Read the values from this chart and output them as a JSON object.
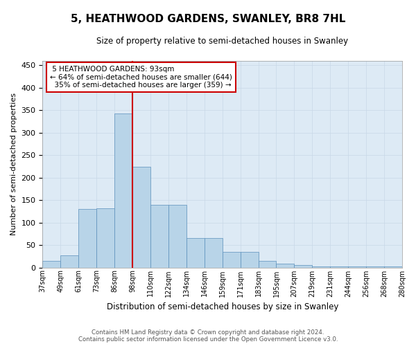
{
  "title": "5, HEATHWOOD GARDENS, SWANLEY, BR8 7HL",
  "subtitle": "Size of property relative to semi-detached houses in Swanley",
  "xlabel": "Distribution of semi-detached houses by size in Swanley",
  "ylabel": "Number of semi-detached properties",
  "bins": [
    "37sqm",
    "49sqm",
    "61sqm",
    "73sqm",
    "86sqm",
    "98sqm",
    "110sqm",
    "122sqm",
    "134sqm",
    "146sqm",
    "159sqm",
    "171sqm",
    "183sqm",
    "195sqm",
    "207sqm",
    "219sqm",
    "231sqm",
    "244sqm",
    "256sqm",
    "268sqm",
    "280sqm"
  ],
  "bar_heights": [
    15,
    27,
    130,
    132,
    342,
    224,
    139,
    139,
    65,
    65,
    34,
    34,
    14,
    8,
    5,
    3,
    3,
    3,
    3,
    3
  ],
  "property_bin_index": 5,
  "property_label": "5 HEATHWOOD GARDENS: 93sqm",
  "pct_smaller": 64,
  "pct_larger": 35,
  "count_smaller": 644,
  "count_larger": 359,
  "bar_color": "#b8d4e8",
  "bar_edge_color": "#5a8fbb",
  "vline_color": "#cc0000",
  "annotation_box_color": "#cc0000",
  "grid_color": "#c8d8e8",
  "background_color": "#ddeaf5",
  "footer_line1": "Contains HM Land Registry data © Crown copyright and database right 2024.",
  "footer_line2": "Contains public sector information licensed under the Open Government Licence v3.0.",
  "ylim": [
    0,
    460
  ],
  "yticks": [
    0,
    50,
    100,
    150,
    200,
    250,
    300,
    350,
    400,
    450
  ]
}
